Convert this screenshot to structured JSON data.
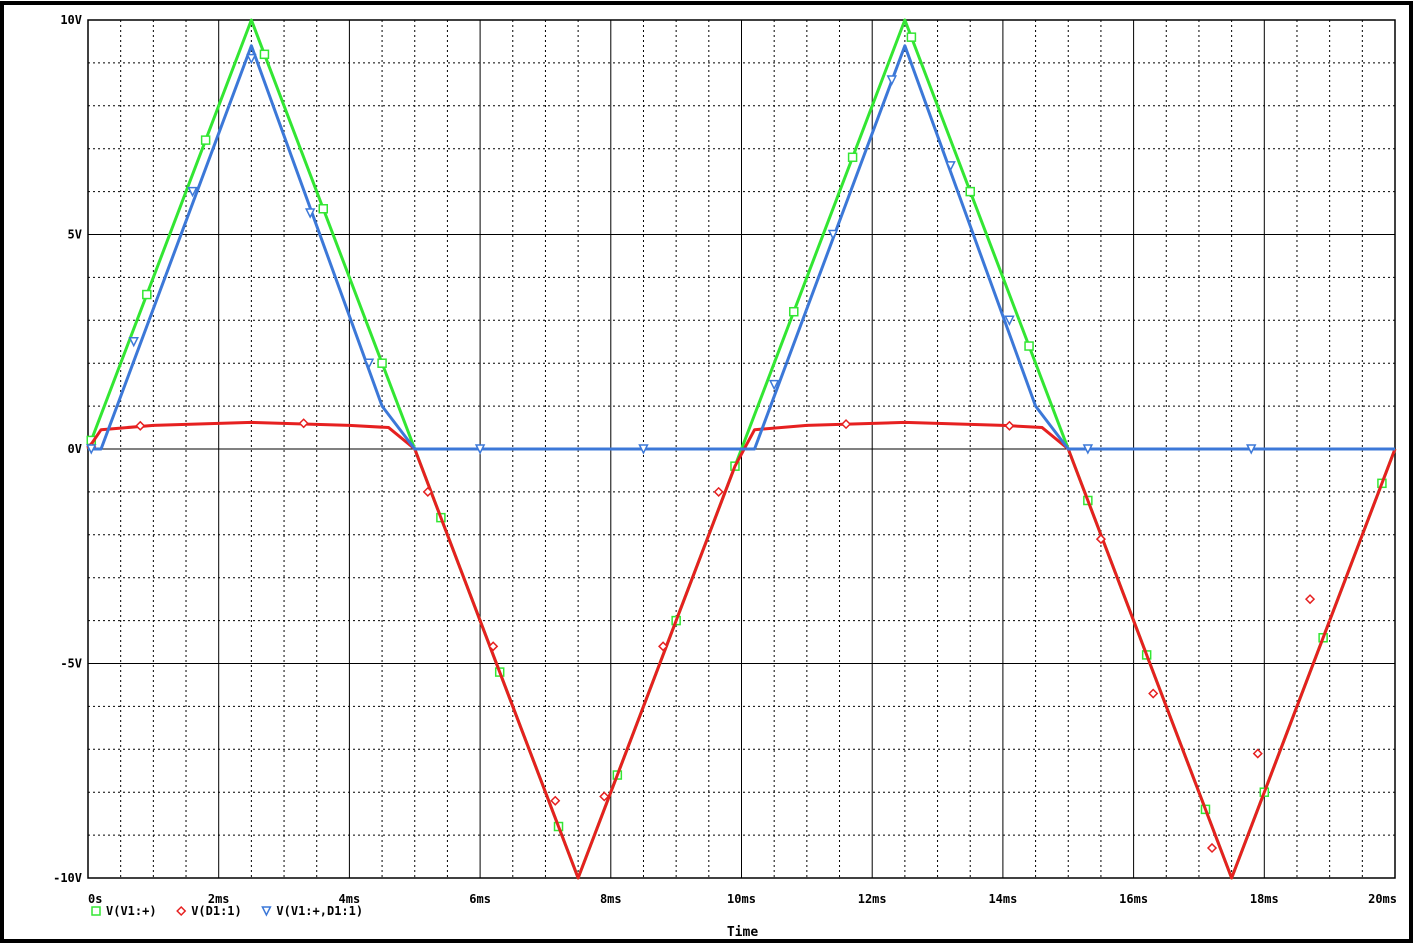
{
  "chart_data": {
    "type": "line",
    "title": "",
    "xlabel": "Time",
    "ylabel": "",
    "xlim": [
      0,
      20
    ],
    "ylim": [
      -10,
      10
    ],
    "x_unit": "ms",
    "y_unit": "V",
    "grid": true,
    "legend_position": "bottom-left",
    "x_ticks": [
      {
        "value": 0,
        "label": "0s"
      },
      {
        "value": 2,
        "label": "2ms"
      },
      {
        "value": 4,
        "label": "4ms"
      },
      {
        "value": 6,
        "label": "6ms"
      },
      {
        "value": 8,
        "label": "8ms"
      },
      {
        "value": 10,
        "label": "10ms"
      },
      {
        "value": 12,
        "label": "12ms"
      },
      {
        "value": 14,
        "label": "14ms"
      },
      {
        "value": 16,
        "label": "16ms"
      },
      {
        "value": 18,
        "label": "18ms"
      },
      {
        "value": 20,
        "label": "20ms"
      }
    ],
    "y_ticks": [
      {
        "value": 10,
        "label": "10V"
      },
      {
        "value": 5,
        "label": "5V"
      },
      {
        "value": 0,
        "label": "0V"
      },
      {
        "value": -5,
        "label": "-5V"
      },
      {
        "value": -10,
        "label": "-10V"
      }
    ],
    "series": [
      {
        "name": "V(V1:+)",
        "color": "#33e633",
        "marker": "square",
        "x": [
          0,
          2.5,
          7.5,
          12.5,
          17.5,
          20
        ],
        "y": [
          0,
          10,
          -10,
          10,
          -10,
          0
        ],
        "marker_x": [
          0.05,
          0.9,
          1.8,
          2.7,
          3.6,
          4.5,
          5.4,
          6.3,
          7.2,
          8.1,
          9.0,
          9.9,
          10.8,
          11.7,
          12.6,
          13.5,
          14.4,
          15.3,
          16.2,
          17.1,
          18.0,
          18.9,
          19.8
        ],
        "marker_y": [
          0.2,
          3.6,
          7.2,
          9.2,
          5.6,
          2.0,
          -1.6,
          -5.2,
          -8.8,
          -7.6,
          -4.0,
          -0.4,
          3.2,
          6.8,
          9.6,
          6.0,
          2.4,
          -1.2,
          -4.8,
          -8.4,
          -8.0,
          -4.4,
          -0.8
        ]
      },
      {
        "name": "V(D1:1)",
        "color": "#e62020",
        "marker": "diamond",
        "x": [
          0,
          0.2,
          1,
          2.5,
          4,
          4.6,
          5,
          7.5,
          9.9,
          10.2,
          11,
          12.5,
          14,
          14.6,
          15,
          17.5,
          20
        ],
        "y": [
          0,
          0.45,
          0.55,
          0.62,
          0.55,
          0.5,
          0,
          -10,
          -0.4,
          0.45,
          0.55,
          0.62,
          0.55,
          0.5,
          0,
          -10,
          0
        ],
        "marker_x": [
          0.05,
          0.8,
          3.3,
          5.2,
          6.2,
          7.15,
          7.9,
          8.8,
          9.65,
          11.6,
          14.1,
          15.5,
          16.3,
          17.2,
          17.9,
          18.7
        ],
        "marker_y": [
          0.05,
          0.54,
          0.6,
          -1.0,
          -4.6,
          -8.2,
          -8.1,
          -4.6,
          -1.0,
          0.58,
          0.54,
          -2.1,
          -5.7,
          -9.3,
          -7.1,
          -3.5
        ]
      },
      {
        "name": "V(V1:+,D1:1)",
        "color": "#3c78d8",
        "marker": "triangle-down",
        "x": [
          0,
          0.2,
          2.5,
          4.5,
          5,
          10,
          10.2,
          12.5,
          14.5,
          15,
          20
        ],
        "y": [
          0,
          0,
          9.4,
          1.0,
          0,
          0,
          0,
          9.4,
          1.0,
          0,
          0
        ],
        "marker_x": [
          0.05,
          0.7,
          1.6,
          2.5,
          3.4,
          4.3,
          6.0,
          8.5,
          10.5,
          11.4,
          12.3,
          13.2,
          14.1,
          15.3,
          17.8
        ],
        "marker_y": [
          0.0,
          2.5,
          6.0,
          9.1,
          5.5,
          2.0,
          0.0,
          0.0,
          1.5,
          5.0,
          8.6,
          6.6,
          3.0,
          0.0,
          0.0
        ]
      }
    ]
  }
}
